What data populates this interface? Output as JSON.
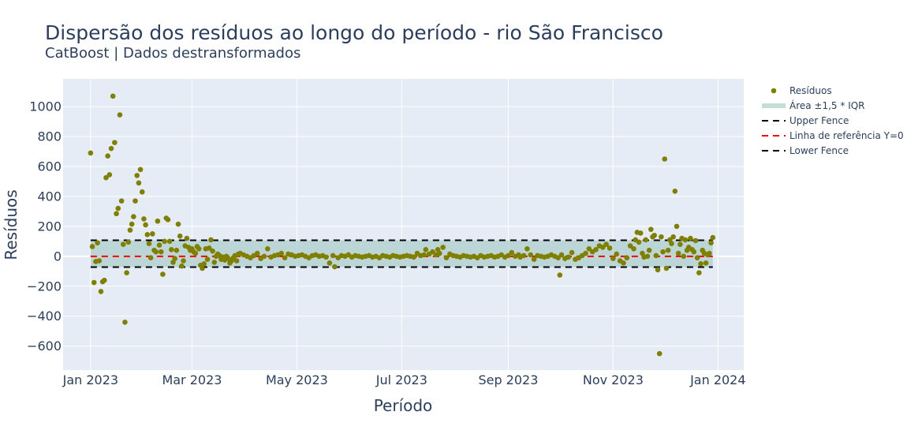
{
  "chart_data": {
    "type": "scatter",
    "title": "Dispersão dos resíduos ao longo do período - rio São Francisco",
    "subtitle": "CatBoost | Dados destransformados",
    "xlabel": "Período",
    "ylabel": "Resíduos",
    "x_ticks": [
      "2023-01-01",
      "2023-03-01",
      "2023-05-01",
      "2023-07-01",
      "2023-09-01",
      "2023-11-01",
      "2024-01-01"
    ],
    "x_tick_labels": [
      "Jan 2023",
      "Mar 2023",
      "May 2023",
      "Jul 2023",
      "Sep 2023",
      "Nov 2023",
      "Jan 2024"
    ],
    "y_ticks": [
      -600,
      -400,
      -200,
      0,
      200,
      400,
      600,
      800,
      1000
    ],
    "y_tick_labels": [
      "−600",
      "−400",
      "−200",
      "0",
      "200",
      "400",
      "600",
      "800",
      "1000"
    ],
    "xlim": [
      "2022-12-16",
      "2024-01-16"
    ],
    "ylim": [
      -760,
      1185
    ],
    "grid": true,
    "legend_position": "right",
    "upper_fence": 107,
    "lower_fence": -72,
    "reference_y": 0,
    "legend": [
      {
        "key": "residuos",
        "label": "Resíduos",
        "symbol": "marker",
        "color": "#808000"
      },
      {
        "key": "area",
        "label": "Área ±1,5 * IQR",
        "symbol": "band",
        "color": "#c4ddd6"
      },
      {
        "key": "upper",
        "label": "Upper Fence",
        "symbol": "dash",
        "color": "#000000"
      },
      {
        "key": "ref",
        "label": "Linha de referência Y=0",
        "symbol": "dash",
        "color": "#ff0000"
      },
      {
        "key": "lower",
        "label": "Lower Fence",
        "symbol": "dash",
        "color": "#000000"
      }
    ],
    "series": [
      {
        "name": "Resíduos",
        "color": "#808000",
        "points": [
          [
            "2023-01-01",
            690
          ],
          [
            "2023-01-02",
            65
          ],
          [
            "2023-01-03",
            -175
          ],
          [
            "2023-01-04",
            -35
          ],
          [
            "2023-01-05",
            90
          ],
          [
            "2023-01-06",
            -30
          ],
          [
            "2023-01-07",
            -235
          ],
          [
            "2023-01-08",
            -170
          ],
          [
            "2023-01-09",
            -160
          ],
          [
            "2023-01-10",
            525
          ],
          [
            "2023-01-11",
            670
          ],
          [
            "2023-01-12",
            545
          ],
          [
            "2023-01-13",
            720
          ],
          [
            "2023-01-14",
            1070
          ],
          [
            "2023-01-15",
            760
          ],
          [
            "2023-01-16",
            285
          ],
          [
            "2023-01-17",
            320
          ],
          [
            "2023-01-18",
            945
          ],
          [
            "2023-01-19",
            370
          ],
          [
            "2023-01-20",
            80
          ],
          [
            "2023-01-21",
            -440
          ],
          [
            "2023-01-22",
            -110
          ],
          [
            "2023-01-23",
            95
          ],
          [
            "2023-01-24",
            175
          ],
          [
            "2023-01-25",
            215
          ],
          [
            "2023-01-26",
            265
          ],
          [
            "2023-01-27",
            370
          ],
          [
            "2023-01-28",
            540
          ],
          [
            "2023-01-29",
            490
          ],
          [
            "2023-01-30",
            580
          ],
          [
            "2023-01-31",
            430
          ],
          [
            "2023-02-01",
            250
          ],
          [
            "2023-02-02",
            210
          ],
          [
            "2023-02-03",
            145
          ],
          [
            "2023-02-04",
            85
          ],
          [
            "2023-02-05",
            -10
          ],
          [
            "2023-02-06",
            150
          ],
          [
            "2023-02-07",
            40
          ],
          [
            "2023-02-08",
            30
          ],
          [
            "2023-02-09",
            235
          ],
          [
            "2023-02-10",
            75
          ],
          [
            "2023-02-11",
            30
          ],
          [
            "2023-02-12",
            -120
          ],
          [
            "2023-02-13",
            100
          ],
          [
            "2023-02-14",
            255
          ],
          [
            "2023-02-15",
            245
          ],
          [
            "2023-02-16",
            100
          ],
          [
            "2023-02-17",
            45
          ],
          [
            "2023-02-18",
            -40
          ],
          [
            "2023-02-19",
            -15
          ],
          [
            "2023-02-20",
            40
          ],
          [
            "2023-02-21",
            215
          ],
          [
            "2023-02-22",
            135
          ],
          [
            "2023-02-23",
            -65
          ],
          [
            "2023-02-24",
            -30
          ],
          [
            "2023-02-25",
            70
          ],
          [
            "2023-02-26",
            120
          ],
          [
            "2023-02-27",
            60
          ],
          [
            "2023-02-28",
            40
          ],
          [
            "2023-03-01",
            50
          ],
          [
            "2023-03-02",
            30
          ],
          [
            "2023-03-03",
            20
          ],
          [
            "2023-03-04",
            65
          ],
          [
            "2023-03-05",
            50
          ],
          [
            "2023-03-06",
            -60
          ],
          [
            "2023-03-07",
            -80
          ],
          [
            "2023-03-08",
            -50
          ],
          [
            "2023-03-09",
            50
          ],
          [
            "2023-03-10",
            -20
          ],
          [
            "2023-03-11",
            55
          ],
          [
            "2023-03-12",
            110
          ],
          [
            "2023-03-13",
            35
          ],
          [
            "2023-03-14",
            -40
          ],
          [
            "2023-03-15",
            0
          ],
          [
            "2023-03-16",
            15
          ],
          [
            "2023-03-17",
            5
          ],
          [
            "2023-03-18",
            -20
          ],
          [
            "2023-03-19",
            -5
          ],
          [
            "2023-03-20",
            -25
          ],
          [
            "2023-03-21",
            0
          ],
          [
            "2023-03-22",
            -15
          ],
          [
            "2023-03-23",
            -45
          ],
          [
            "2023-03-24",
            -30
          ],
          [
            "2023-03-25",
            -10
          ],
          [
            "2023-03-26",
            5
          ],
          [
            "2023-03-27",
            -30
          ],
          [
            "2023-03-28",
            15
          ],
          [
            "2023-03-29",
            20
          ],
          [
            "2023-03-31",
            10
          ],
          [
            "2023-04-02",
            0
          ],
          [
            "2023-04-04",
            -10
          ],
          [
            "2023-04-06",
            5
          ],
          [
            "2023-04-08",
            20
          ],
          [
            "2023-04-10",
            -15
          ],
          [
            "2023-04-12",
            0
          ],
          [
            "2023-04-14",
            50
          ],
          [
            "2023-04-16",
            -5
          ],
          [
            "2023-04-18",
            5
          ],
          [
            "2023-04-20",
            10
          ],
          [
            "2023-04-22",
            20
          ],
          [
            "2023-04-24",
            -10
          ],
          [
            "2023-04-26",
            15
          ],
          [
            "2023-04-28",
            10
          ],
          [
            "2023-04-30",
            0
          ],
          [
            "2023-05-02",
            5
          ],
          [
            "2023-05-04",
            10
          ],
          [
            "2023-05-06",
            0
          ],
          [
            "2023-05-08",
            -10
          ],
          [
            "2023-05-10",
            5
          ],
          [
            "2023-05-12",
            10
          ],
          [
            "2023-05-14",
            0
          ],
          [
            "2023-05-16",
            5
          ],
          [
            "2023-05-18",
            -5
          ],
          [
            "2023-05-20",
            -45
          ],
          [
            "2023-05-22",
            5
          ],
          [
            "2023-05-23",
            -70
          ],
          [
            "2023-05-25",
            -10
          ],
          [
            "2023-05-27",
            5
          ],
          [
            "2023-05-29",
            0
          ],
          [
            "2023-05-31",
            10
          ],
          [
            "2023-06-02",
            -5
          ],
          [
            "2023-06-04",
            5
          ],
          [
            "2023-06-06",
            0
          ],
          [
            "2023-06-08",
            -5
          ],
          [
            "2023-06-10",
            0
          ],
          [
            "2023-06-12",
            5
          ],
          [
            "2023-06-14",
            -5
          ],
          [
            "2023-06-16",
            0
          ],
          [
            "2023-06-18",
            -10
          ],
          [
            "2023-06-20",
            5
          ],
          [
            "2023-06-22",
            0
          ],
          [
            "2023-06-24",
            -5
          ],
          [
            "2023-06-26",
            5
          ],
          [
            "2023-06-28",
            0
          ],
          [
            "2023-06-30",
            -5
          ],
          [
            "2023-07-02",
            0
          ],
          [
            "2023-07-04",
            5
          ],
          [
            "2023-07-06",
            0
          ],
          [
            "2023-07-08",
            -5
          ],
          [
            "2023-07-10",
            20
          ],
          [
            "2023-07-12",
            5
          ],
          [
            "2023-07-14",
            10
          ],
          [
            "2023-07-15",
            45
          ],
          [
            "2023-07-17",
            15
          ],
          [
            "2023-07-19",
            30
          ],
          [
            "2023-07-21",
            10
          ],
          [
            "2023-07-22",
            45
          ],
          [
            "2023-07-23",
            20
          ],
          [
            "2023-07-25",
            60
          ],
          [
            "2023-07-27",
            -10
          ],
          [
            "2023-07-29",
            15
          ],
          [
            "2023-07-31",
            5
          ],
          [
            "2023-08-02",
            0
          ],
          [
            "2023-08-04",
            -5
          ],
          [
            "2023-08-06",
            5
          ],
          [
            "2023-08-08",
            0
          ],
          [
            "2023-08-10",
            -5
          ],
          [
            "2023-08-12",
            0
          ],
          [
            "2023-08-14",
            -10
          ],
          [
            "2023-08-16",
            5
          ],
          [
            "2023-08-18",
            -5
          ],
          [
            "2023-08-20",
            0
          ],
          [
            "2023-08-22",
            5
          ],
          [
            "2023-08-24",
            -5
          ],
          [
            "2023-08-26",
            0
          ],
          [
            "2023-08-28",
            10
          ],
          [
            "2023-08-30",
            -5
          ],
          [
            "2023-09-01",
            5
          ],
          [
            "2023-09-03",
            25
          ],
          [
            "2023-09-05",
            0
          ],
          [
            "2023-09-07",
            10
          ],
          [
            "2023-09-08",
            -5
          ],
          [
            "2023-09-10",
            5
          ],
          [
            "2023-09-12",
            50
          ],
          [
            "2023-09-14",
            10
          ],
          [
            "2023-09-16",
            -20
          ],
          [
            "2023-09-18",
            5
          ],
          [
            "2023-09-20",
            0
          ],
          [
            "2023-09-22",
            -5
          ],
          [
            "2023-09-24",
            0
          ],
          [
            "2023-09-26",
            10
          ],
          [
            "2023-09-28",
            0
          ],
          [
            "2023-09-30",
            -10
          ],
          [
            "2023-10-01",
            -125
          ],
          [
            "2023-10-02",
            10
          ],
          [
            "2023-10-04",
            -15
          ],
          [
            "2023-10-06",
            -5
          ],
          [
            "2023-10-08",
            25
          ],
          [
            "2023-10-10",
            -20
          ],
          [
            "2023-10-12",
            -10
          ],
          [
            "2023-10-14",
            5
          ],
          [
            "2023-10-16",
            20
          ],
          [
            "2023-10-18",
            50
          ],
          [
            "2023-10-20",
            30
          ],
          [
            "2023-10-22",
            45
          ],
          [
            "2023-10-24",
            70
          ],
          [
            "2023-10-26",
            60
          ],
          [
            "2023-10-28",
            80
          ],
          [
            "2023-10-30",
            55
          ],
          [
            "2023-11-01",
            -15
          ],
          [
            "2023-11-03",
            15
          ],
          [
            "2023-11-05",
            -30
          ],
          [
            "2023-11-07",
            -45
          ],
          [
            "2023-11-09",
            -10
          ],
          [
            "2023-11-11",
            70
          ],
          [
            "2023-11-13",
            50
          ],
          [
            "2023-11-14",
            110
          ],
          [
            "2023-11-15",
            160
          ],
          [
            "2023-11-16",
            95
          ],
          [
            "2023-11-17",
            155
          ],
          [
            "2023-11-18",
            20
          ],
          [
            "2023-11-19",
            -5
          ],
          [
            "2023-11-20",
            110
          ],
          [
            "2023-11-21",
            0
          ],
          [
            "2023-11-22",
            40
          ],
          [
            "2023-11-23",
            180
          ],
          [
            "2023-11-24",
            130
          ],
          [
            "2023-11-25",
            140
          ],
          [
            "2023-11-26",
            5
          ],
          [
            "2023-11-27",
            -90
          ],
          [
            "2023-11-28",
            -650
          ],
          [
            "2023-11-29",
            130
          ],
          [
            "2023-11-30",
            30
          ],
          [
            "2023-12-01",
            650
          ],
          [
            "2023-12-02",
            -80
          ],
          [
            "2023-12-03",
            40
          ],
          [
            "2023-12-04",
            110
          ],
          [
            "2023-12-05",
            85
          ],
          [
            "2023-12-06",
            130
          ],
          [
            "2023-12-07",
            435
          ],
          [
            "2023-12-08",
            200
          ],
          [
            "2023-12-09",
            20
          ],
          [
            "2023-12-10",
            80
          ],
          [
            "2023-12-11",
            120
          ],
          [
            "2023-12-12",
            0
          ],
          [
            "2023-12-13",
            110
          ],
          [
            "2023-12-14",
            40
          ],
          [
            "2023-12-15",
            60
          ],
          [
            "2023-12-16",
            120
          ],
          [
            "2023-12-17",
            45
          ],
          [
            "2023-12-18",
            30
          ],
          [
            "2023-12-19",
            105
          ],
          [
            "2023-12-20",
            -10
          ],
          [
            "2023-12-21",
            -110
          ],
          [
            "2023-12-22",
            -50
          ],
          [
            "2023-12-23",
            40
          ],
          [
            "2023-12-24",
            20
          ],
          [
            "2023-12-25",
            -45
          ],
          [
            "2023-12-26",
            10
          ],
          [
            "2023-12-27",
            20
          ],
          [
            "2023-12-28",
            90
          ],
          [
            "2023-12-29",
            125
          ]
        ]
      }
    ]
  }
}
